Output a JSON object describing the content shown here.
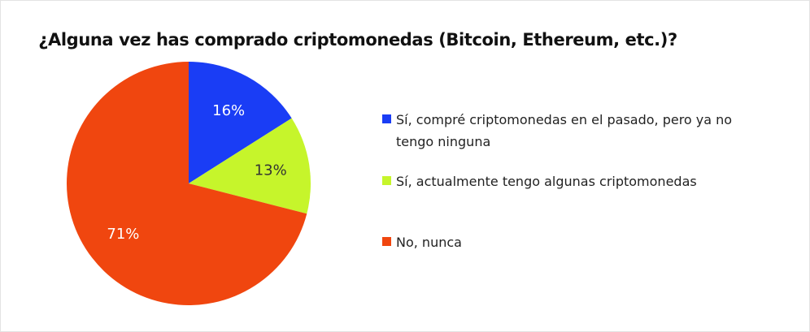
{
  "chart_data": {
    "type": "pie",
    "title": "¿Alguna vez has comprado criptomonedas (Bitcoin, Ethereum, etc.)?",
    "legend_position": "right",
    "slices": [
      {
        "label": "Sí, compré criptomonedas en el pasado, pero ya no tengo ninguna",
        "value": 16,
        "value_label": "16%",
        "color": "#1a3df5",
        "label_color": "#ffffff"
      },
      {
        "label": "Sí, actualmente tengo algunas criptomonedas",
        "value": 13,
        "value_label": "13%",
        "color": "#c6f52b",
        "label_color": "#333333"
      },
      {
        "label": "No, nunca",
        "value": 71,
        "value_label": "71%",
        "color": "#f0460f",
        "label_color": "#ffffff"
      }
    ]
  }
}
